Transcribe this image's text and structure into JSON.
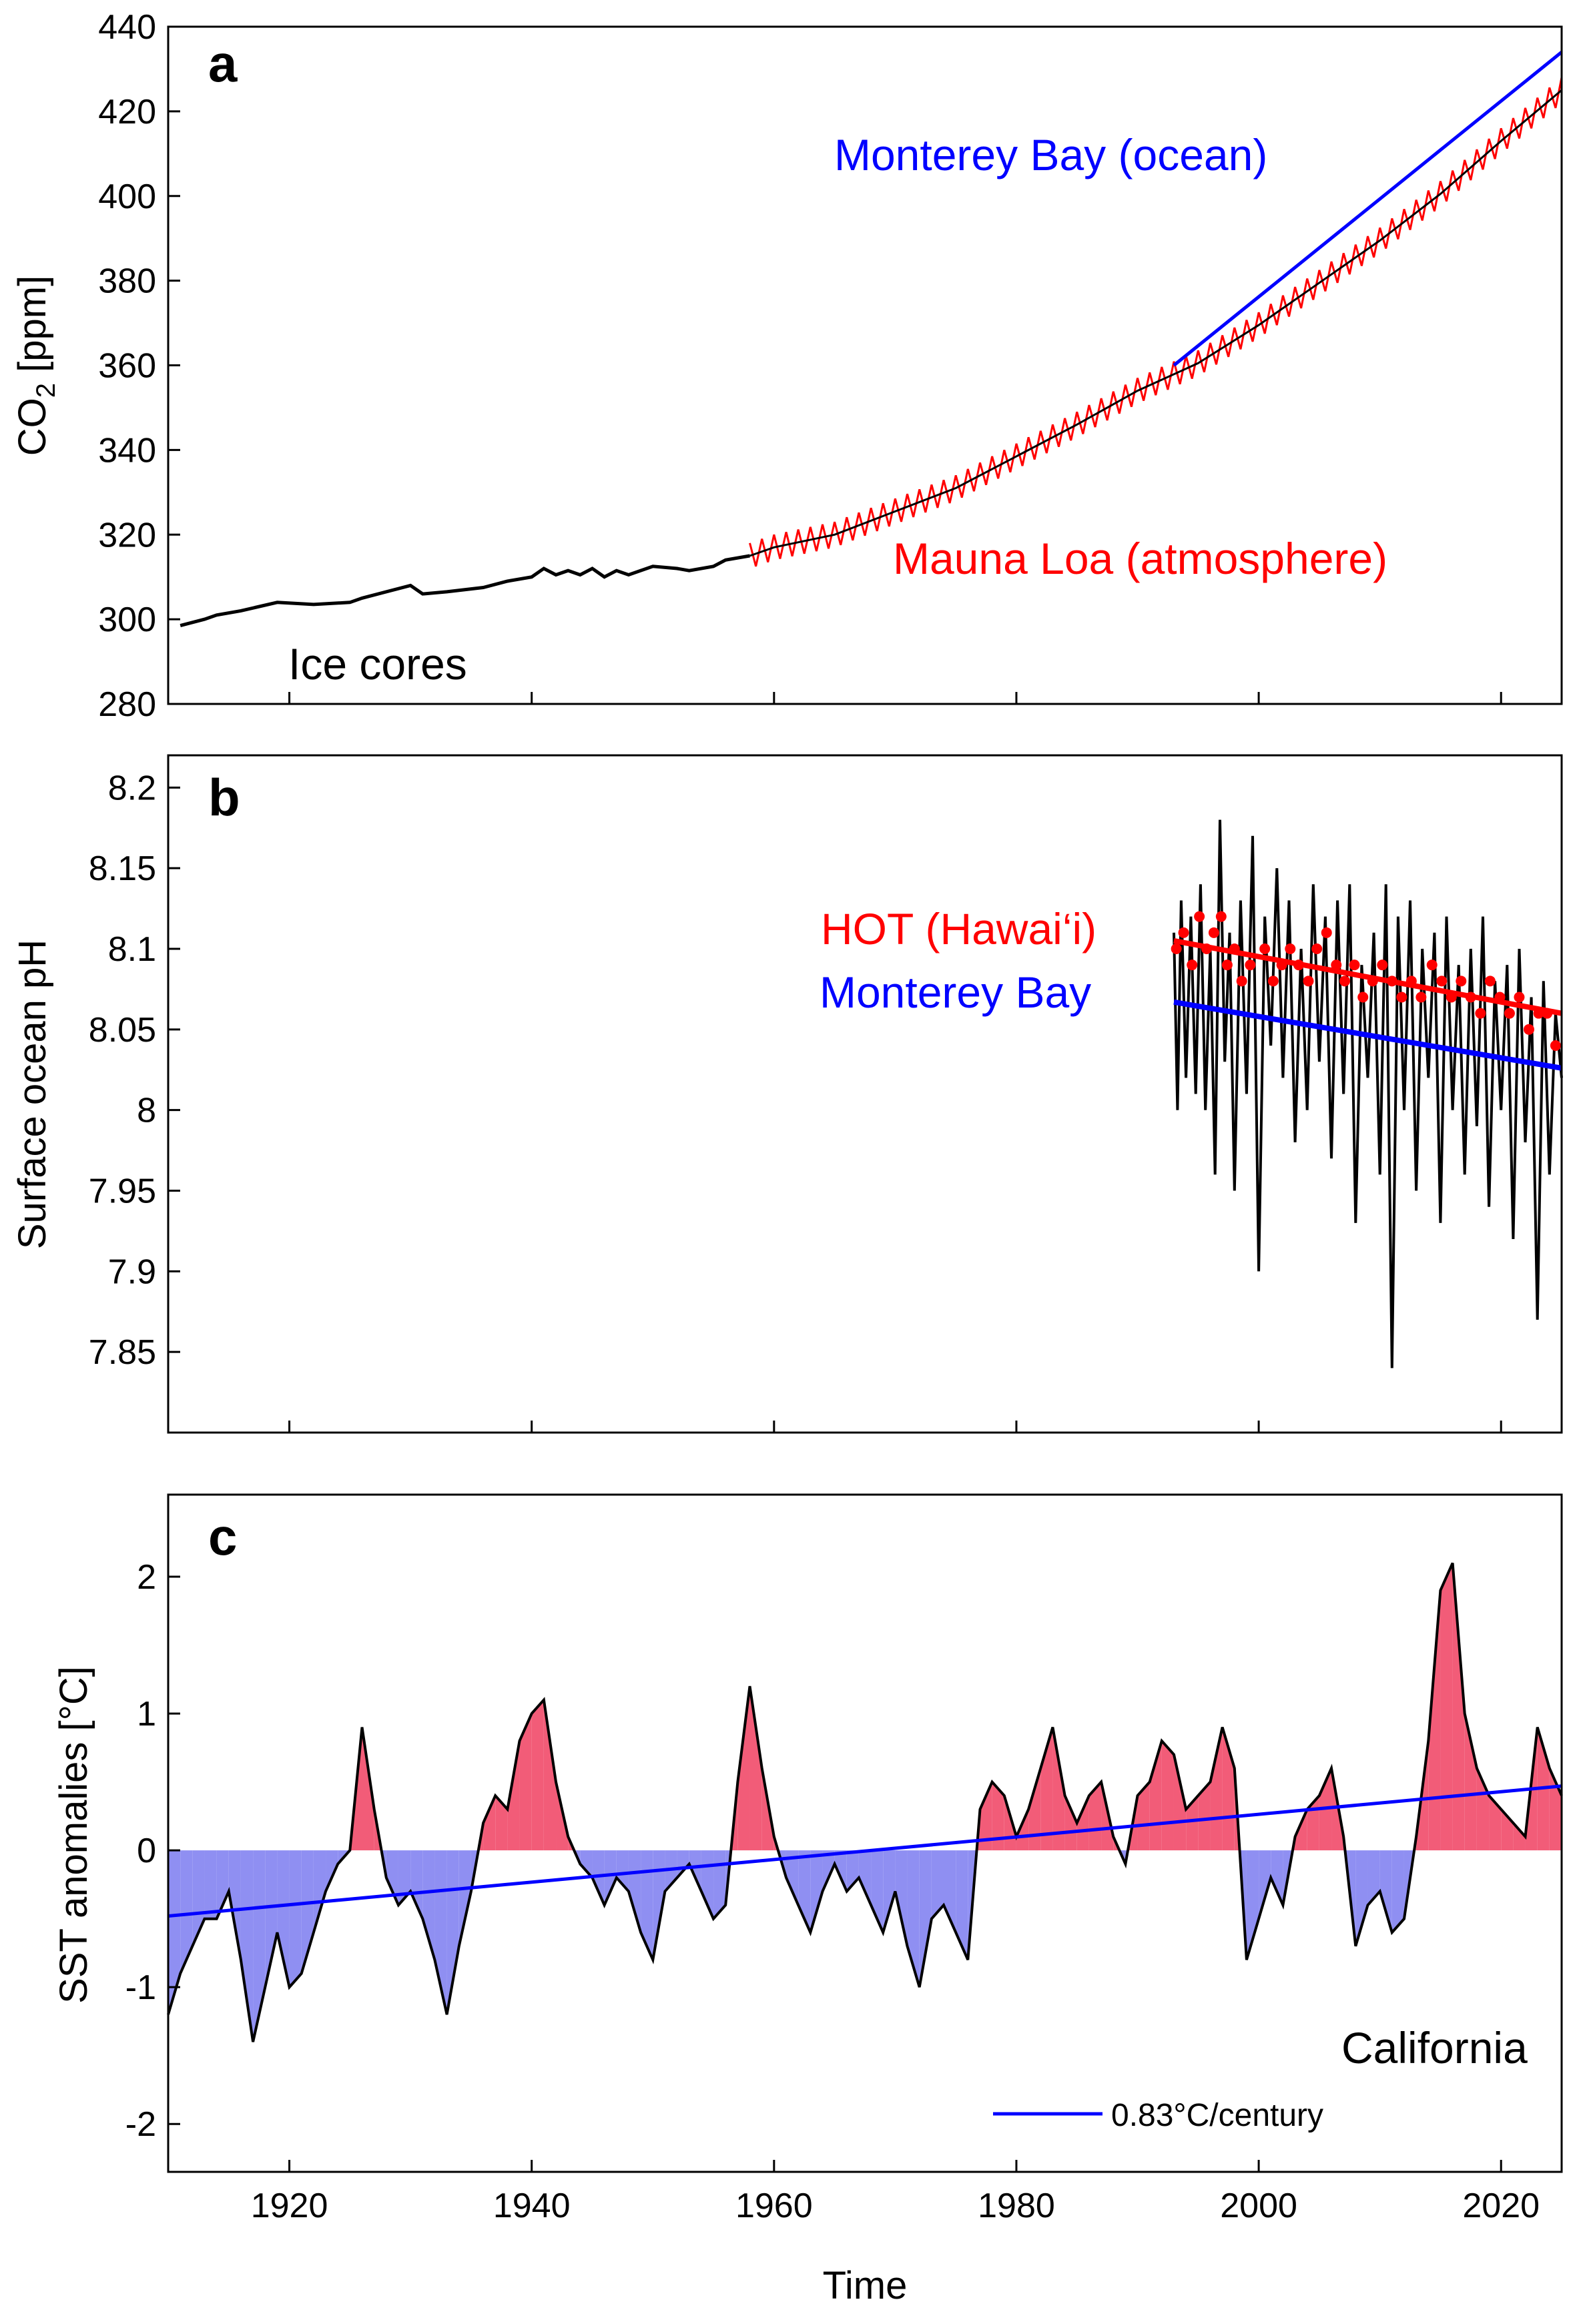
{
  "colors": {
    "axis": "#000000",
    "black": "#000000",
    "blue": "#0000ff",
    "red": "#ff0000",
    "warm_fill": "#f25c78",
    "cool_fill": "#8f8ff2"
  },
  "xaxis": {
    "label": "Time",
    "ticks": [
      "1920",
      "1940",
      "1960",
      "1980",
      "2000",
      "2020"
    ]
  },
  "chart_data": [
    {
      "panel": "a",
      "type": "line",
      "ylabel_main": "CO",
      "ylabel_sub": "2",
      "ylabel_rest": " [ppm]",
      "xlim": [
        1910,
        2025
      ],
      "ylim": [
        280,
        440
      ],
      "yticks": [
        "280",
        "300",
        "320",
        "340",
        "360",
        "380",
        "400",
        "420",
        "440"
      ],
      "annotations": [
        "Monterey Bay (ocean)",
        "Mauna Loa (atmosphere)",
        "Ice cores"
      ],
      "series": [
        {
          "name": "Ice cores",
          "color": "#000000",
          "x": [
            1911,
            1913,
            1914,
            1916,
            1919,
            1922,
            1925,
            1926,
            1930,
            1931,
            1933,
            1936,
            1938,
            1940,
            1941,
            1942,
            1943,
            1944,
            1945,
            1946,
            1947,
            1948,
            1950,
            1952,
            1953,
            1955,
            1956,
            1958
          ],
          "y": [
            298.5,
            300,
            301,
            302,
            304,
            303.5,
            304,
            305,
            308,
            306,
            306.5,
            307.5,
            309,
            310,
            312,
            310.5,
            311.5,
            310.5,
            312,
            310,
            311.5,
            310.5,
            312.5,
            312,
            311.5,
            312.5,
            314,
            315
          ]
        },
        {
          "name": "Mauna Loa (atmosphere)",
          "color": "#ff0000",
          "seasonal_amplitude_ppm": 3,
          "x": [
            1958,
            1960,
            1965,
            1970,
            1975,
            1980,
            1985,
            1990,
            1995,
            2000,
            2005,
            2010,
            2015,
            2020,
            2025
          ],
          "y": [
            315,
            317,
            320,
            325.5,
            331,
            338.5,
            346,
            354,
            360.5,
            369.5,
            379.5,
            389.5,
            400.5,
            413,
            425
          ]
        },
        {
          "name": "Monterey Bay (ocean)",
          "color": "#0000ff",
          "x": [
            1993,
            2025
          ],
          "y": [
            360,
            434
          ]
        }
      ]
    },
    {
      "panel": "b",
      "type": "line",
      "ylabel": "Surface ocean pH",
      "xlim": [
        1910,
        2025
      ],
      "ylim": [
        7.8,
        8.22
      ],
      "yticks": [
        "7.85",
        "7.9",
        "7.95",
        "8",
        "8.05",
        "8.1",
        "8.15",
        "8.2"
      ],
      "annotations": [
        "HOT (Hawai‘i)",
        "Monterey Bay"
      ],
      "series": [
        {
          "name": "Monterey Bay pH observations",
          "color": "#000000",
          "x": [
            1993.0,
            1993.3,
            1993.6,
            1994.0,
            1994.4,
            1994.8,
            1995.2,
            1995.6,
            1996.0,
            1996.4,
            1996.8,
            1997.2,
            1997.6,
            1998.0,
            1998.5,
            1999.0,
            1999.5,
            2000.0,
            2000.5,
            2001.0,
            2001.5,
            2002.0,
            2002.5,
            2003.0,
            2003.5,
            2004.0,
            2004.5,
            2005.0,
            2005.5,
            2006.0,
            2006.5,
            2007.0,
            2007.5,
            2008.0,
            2008.5,
            2009.0,
            2009.5,
            2010.0,
            2010.5,
            2011.0,
            2011.5,
            2012.0,
            2012.5,
            2013.0,
            2013.5,
            2014.0,
            2014.5,
            2015.0,
            2015.5,
            2016.0,
            2016.5,
            2017.0,
            2017.5,
            2018.0,
            2018.5,
            2019.0,
            2019.5,
            2020.0,
            2020.5,
            2021.0,
            2021.5,
            2022.0,
            2022.5,
            2023.0,
            2023.5,
            2024.0,
            2024.5,
            2025.0
          ],
          "y": [
            8.11,
            8.0,
            8.13,
            8.02,
            8.12,
            8.01,
            8.14,
            8.0,
            8.1,
            7.96,
            8.18,
            8.03,
            8.11,
            7.95,
            8.13,
            8.01,
            8.17,
            7.9,
            8.12,
            8.04,
            8.15,
            8.02,
            8.13,
            7.98,
            8.1,
            8.0,
            8.14,
            8.03,
            8.12,
            7.97,
            8.13,
            8.01,
            8.14,
            7.93,
            8.09,
            8.02,
            8.11,
            7.96,
            8.14,
            7.84,
            8.12,
            8.0,
            8.13,
            7.95,
            8.1,
            8.02,
            8.11,
            7.93,
            8.12,
            8.0,
            8.09,
            7.96,
            8.1,
            7.99,
            8.12,
            7.94,
            8.08,
            8.0,
            8.09,
            7.92,
            8.1,
            7.98,
            8.07,
            7.87,
            8.08,
            7.96,
            8.06,
            8.02
          ]
        },
        {
          "name": "HOT (Hawai‘i)",
          "color": "#ff0000",
          "trend_x": [
            1993,
            2025
          ],
          "trend_y": [
            8.105,
            8.06
          ],
          "points_x": [
            1993.2,
            1993.8,
            1994.5,
            1995.1,
            1995.7,
            1996.3,
            1996.9,
            1997.4,
            1998.0,
            1998.6,
            1999.3,
            2000.5,
            2001.2,
            2001.9,
            2002.6,
            2003.3,
            2004.1,
            2004.8,
            2005.6,
            2006.4,
            2007.1,
            2007.9,
            2008.6,
            2009.4,
            2010.2,
            2011.0,
            2011.8,
            2012.6,
            2013.4,
            2014.3,
            2015.1,
            2015.9,
            2016.7,
            2017.5,
            2018.3,
            2019.1,
            2019.9,
            2020.7,
            2021.5,
            2022.3,
            2023.1,
            2023.8,
            2024.5
          ],
          "points_y": [
            8.1,
            8.11,
            8.09,
            8.12,
            8.1,
            8.11,
            8.12,
            8.09,
            8.1,
            8.08,
            8.09,
            8.1,
            8.08,
            8.09,
            8.1,
            8.09,
            8.08,
            8.1,
            8.11,
            8.09,
            8.08,
            8.09,
            8.07,
            8.08,
            8.09,
            8.08,
            8.07,
            8.08,
            8.07,
            8.09,
            8.08,
            8.07,
            8.08,
            8.07,
            8.06,
            8.08,
            8.07,
            8.06,
            8.07,
            8.05,
            8.06,
            8.06,
            8.04
          ]
        },
        {
          "name": "Monterey Bay",
          "color": "#0000ff",
          "x": [
            1993,
            2025
          ],
          "y": [
            8.067,
            8.026
          ]
        }
      ]
    },
    {
      "panel": "c",
      "type": "area",
      "ylabel": "SST anomalies [°C]",
      "xlim": [
        1910,
        2025
      ],
      "ylim": [
        -2.35,
        2.6
      ],
      "yticks": [
        "-2",
        "-1",
        "0",
        "1",
        "2"
      ],
      "annotations": [
        "California"
      ],
      "legend": {
        "position": "bottom-right",
        "entries": [
          "0.83°C/century"
        ]
      },
      "series": [
        {
          "name": "SST anomalies",
          "color": "#000000",
          "x": [
            1910,
            1911,
            1912,
            1913,
            1914,
            1915,
            1916,
            1917,
            1918,
            1919,
            1920,
            1921,
            1922,
            1923,
            1924,
            1925,
            1926,
            1927,
            1928,
            1929,
            1930,
            1931,
            1932,
            1933,
            1934,
            1935,
            1936,
            1937,
            1938,
            1939,
            1940,
            1941,
            1942,
            1943,
            1944,
            1945,
            1946,
            1947,
            1948,
            1949,
            1950,
            1951,
            1952,
            1953,
            1954,
            1955,
            1956,
            1957,
            1958,
            1959,
            1960,
            1961,
            1962,
            1963,
            1964,
            1965,
            1966,
            1967,
            1968,
            1969,
            1970,
            1971,
            1972,
            1973,
            1974,
            1975,
            1976,
            1977,
            1978,
            1979,
            1980,
            1981,
            1982,
            1983,
            1984,
            1985,
            1986,
            1987,
            1988,
            1989,
            1990,
            1991,
            1992,
            1993,
            1994,
            1995,
            1996,
            1997,
            1998,
            1999,
            2000,
            2001,
            2002,
            2003,
            2004,
            2005,
            2006,
            2007,
            2008,
            2009,
            2010,
            2011,
            2012,
            2013,
            2014,
            2015,
            2016,
            2017,
            2018,
            2019,
            2020,
            2021,
            2022,
            2023,
            2024,
            2025
          ],
          "y": [
            -1.2,
            -0.9,
            -0.7,
            -0.5,
            -0.5,
            -0.3,
            -0.8,
            -1.4,
            -1.0,
            -0.6,
            -1.0,
            -0.9,
            -0.6,
            -0.3,
            -0.1,
            0.0,
            0.9,
            0.3,
            -0.2,
            -0.4,
            -0.3,
            -0.5,
            -0.8,
            -1.2,
            -0.7,
            -0.3,
            0.2,
            0.4,
            0.3,
            0.8,
            1.0,
            1.1,
            0.5,
            0.1,
            -0.1,
            -0.2,
            -0.4,
            -0.2,
            -0.3,
            -0.6,
            -0.8,
            -0.3,
            -0.2,
            -0.1,
            -0.3,
            -0.5,
            -0.4,
            0.5,
            1.2,
            0.6,
            0.1,
            -0.2,
            -0.4,
            -0.6,
            -0.3,
            -0.1,
            -0.3,
            -0.2,
            -0.4,
            -0.6,
            -0.3,
            -0.7,
            -1.0,
            -0.5,
            -0.4,
            -0.6,
            -0.8,
            0.3,
            0.5,
            0.4,
            0.1,
            0.3,
            0.6,
            0.9,
            0.4,
            0.2,
            0.4,
            0.5,
            0.1,
            -0.1,
            0.4,
            0.5,
            0.8,
            0.7,
            0.3,
            0.4,
            0.5,
            0.9,
            0.6,
            -0.8,
            -0.5,
            -0.2,
            -0.4,
            0.1,
            0.3,
            0.4,
            0.6,
            0.1,
            -0.7,
            -0.4,
            -0.3,
            -0.6,
            -0.5,
            0.1,
            0.8,
            1.9,
            2.1,
            1.0,
            0.6,
            0.4,
            0.3,
            0.2,
            0.1,
            0.9,
            0.6,
            0.4
          ]
        },
        {
          "name": "0.83°C/century",
          "color": "#0000ff",
          "x": [
            1910,
            2025
          ],
          "y": [
            -0.48,
            0.47
          ]
        }
      ]
    }
  ]
}
